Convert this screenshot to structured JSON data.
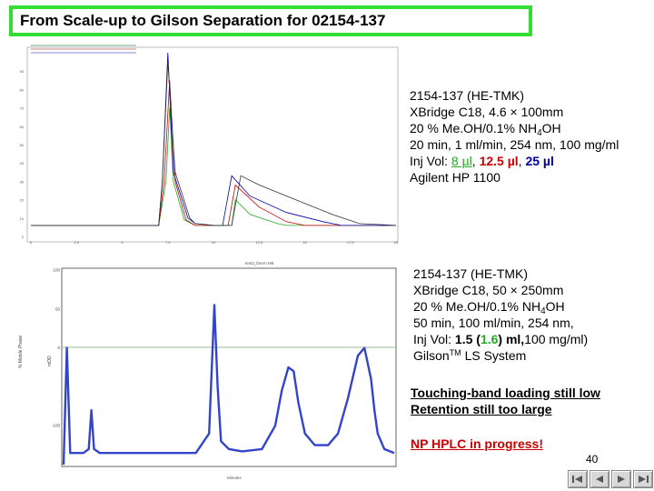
{
  "title": "From Scale-up to Gilson Separation for 02154-137",
  "info_top": {
    "line1": "2154-137 (HE-TMK)",
    "line2": "XBridge C18, 4.6 × 100mm",
    "line3_a": "20 % Me.OH/0.1% NH",
    "line3_sub": "4",
    "line3_b": "OH",
    "line4": "20 min, 1 ml/min, 254 nm, 100 mg/ml",
    "inj_label": "Inj Vol: ",
    "inj_v1": "8 µl",
    "inj_sep1": ", ",
    "inj_v2": "12.5 µl",
    "inj_sep2": ", ",
    "inj_v3": "25 µl",
    "line6": "Agilent HP 1100"
  },
  "info_bottom": {
    "line1": "2154-137 (HE-TMK)",
    "line2": "XBridge C18, 50 × 250mm",
    "line3_a": "20 % Me.OH/0.1% NH",
    "line3_sub": "4",
    "line3_b": "OH",
    "line4": "50 min, 100 ml/min, 254 nm,",
    "inj_label": "Inj Vol: ",
    "inj_a": "1.5 (",
    "inj_b": "1.6",
    "inj_c": ") ml,",
    "inj_d": "100 mg/ml)",
    "line6_a": "Gilson",
    "line6_sup": "TM",
    "line6_b": " LS System"
  },
  "note": {
    "line1": "Touching-band loading still low",
    "line2": "Retention still too large"
  },
  "np_note": "NP HPLC in progress!",
  "page_number": "40",
  "nav_icons": [
    "first-slide-icon",
    "previous-slide-icon",
    "next-slide-icon",
    "last-slide-icon"
  ],
  "colors": {
    "title_border": "#33dd33",
    "green": "#22aa22",
    "red": "#cc0000",
    "blue": "#0000aa",
    "trace2": "#3344cc"
  },
  "chart_data": [
    {
      "type": "line",
      "title": "",
      "xlabel": "",
      "ylabel": "",
      "xlim": [
        0,
        20
      ],
      "ylim": [
        0,
        100
      ],
      "x_ticks": [
        0,
        2.5,
        5,
        7.5,
        10,
        12.5,
        15,
        17.5,
        20
      ],
      "y_ticks": [
        0,
        10,
        20,
        30,
        40,
        50,
        60,
        70,
        80,
        90
      ],
      "series": [
        {
          "color": "#22aa22",
          "x": [
            0,
            7,
            7.4,
            7.6,
            7.8,
            8.4,
            9,
            10,
            11,
            11.2,
            12,
            13.5,
            14,
            20
          ],
          "y": [
            6,
            6,
            30,
            70,
            30,
            9,
            6,
            6,
            6,
            20,
            12,
            7,
            6,
            6
          ]
        },
        {
          "color": "#cc0000",
          "x": [
            0,
            7,
            7.3,
            7.6,
            7.9,
            8.5,
            9,
            10,
            10.8,
            11.2,
            12.5,
            14,
            15,
            20
          ],
          "y": [
            6,
            6,
            30,
            85,
            30,
            9,
            6,
            6,
            6,
            28,
            16,
            8,
            6,
            6
          ]
        },
        {
          "color": "#0000aa",
          "x": [
            0,
            7,
            7.2,
            7.5,
            7.8,
            8.6,
            9,
            10,
            10.5,
            11,
            12,
            14,
            16,
            17,
            20
          ],
          "y": [
            6,
            6,
            30,
            100,
            35,
            10,
            7,
            6,
            6,
            33,
            22,
            13,
            8,
            6,
            6
          ]
        },
        {
          "color": "#333333",
          "x": [
            0,
            7,
            7.2,
            7.5,
            7.9,
            8.7,
            9,
            10,
            11,
            11.5,
            12.5,
            14.5,
            16.5,
            18,
            20
          ],
          "y": [
            6,
            6,
            30,
            95,
            35,
            10,
            7,
            6,
            6,
            33,
            28,
            20,
            12,
            7,
            6
          ]
        }
      ]
    },
    {
      "type": "line",
      "title": "",
      "xlabel": "",
      "ylabel": "",
      "xlim": [
        0,
        50
      ],
      "ylim": [
        -150,
        100
      ],
      "y_ticks": [
        -100,
        0,
        50,
        100
      ],
      "series": [
        {
          "color": "#3344cc",
          "x": [
            0,
            0.5,
            1,
            3,
            3.8,
            4.2,
            4.6,
            5.5,
            7,
            10,
            15,
            20,
            22,
            22.8,
            23.3,
            23.8,
            25,
            27,
            30,
            32,
            33,
            34,
            34.8,
            35.5,
            36.5,
            38,
            40,
            41.5,
            43,
            44.5,
            45.5,
            46.5,
            47,
            47.5,
            48.5,
            50
          ],
          "y": [
            -150,
            0,
            -135,
            -135,
            -130,
            -80,
            -130,
            -135,
            -135,
            -135,
            -135,
            -135,
            -110,
            55,
            -50,
            -120,
            -130,
            -133,
            -130,
            -100,
            -55,
            -25,
            -30,
            -70,
            -110,
            -125,
            -125,
            -110,
            -65,
            -10,
            0,
            -40,
            -80,
            -110,
            -130,
            -135
          ]
        }
      ]
    }
  ]
}
